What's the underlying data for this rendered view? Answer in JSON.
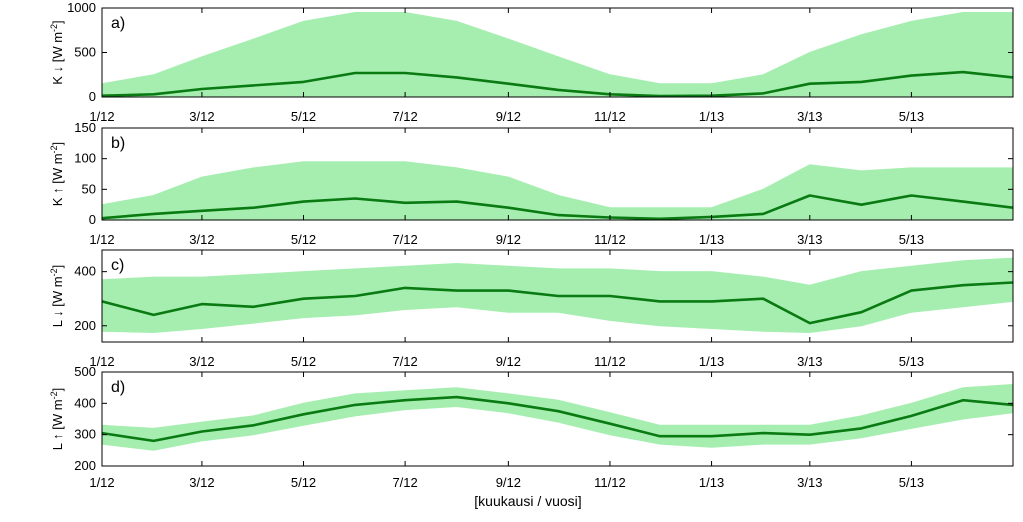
{
  "figure": {
    "xlabel": "[kuukausi / vuosi]",
    "x_ticks": [
      "1/12",
      "3/12",
      "5/12",
      "7/12",
      "9/12",
      "11/12",
      "1/13",
      "3/13",
      "5/13"
    ],
    "colors": {
      "scatter": "#a6eeb0",
      "mean": "#0a7a12",
      "frame": "#000000"
    }
  },
  "chart_data": [
    {
      "type": "scatter",
      "panel_label": "a)",
      "ylabel_parts": [
        "K",
        "↓",
        "[W m",
        "-2",
        "]"
      ],
      "ylim": [
        0,
        1000
      ],
      "yticks": [
        0,
        500,
        1000
      ],
      "xlim": [
        "2012-01-01",
        "2013-07-01"
      ],
      "series": [
        {
          "kind": "envelope",
          "x": [
            "2012-01",
            "2012-02",
            "2012-03",
            "2012-04",
            "2012-05",
            "2012-06",
            "2012-07",
            "2012-08",
            "2012-09",
            "2012-10",
            "2012-11",
            "2012-12",
            "2013-01",
            "2013-02",
            "2013-03",
            "2013-04",
            "2013-05",
            "2013-06",
            "2013-07"
          ],
          "low": [
            0,
            0,
            0,
            0,
            0,
            0,
            0,
            0,
            0,
            0,
            0,
            0,
            0,
            0,
            0,
            0,
            0,
            0,
            0
          ],
          "high": [
            150,
            250,
            450,
            650,
            850,
            950,
            950,
            850,
            650,
            450,
            250,
            150,
            150,
            250,
            500,
            700,
            850,
            950,
            950
          ]
        },
        {
          "kind": "mean",
          "x": [
            "2012-01",
            "2012-02",
            "2012-03",
            "2012-04",
            "2012-05",
            "2012-06",
            "2012-07",
            "2012-08",
            "2012-09",
            "2012-10",
            "2012-11",
            "2012-12",
            "2013-01",
            "2013-02",
            "2013-03",
            "2013-04",
            "2013-05",
            "2013-06",
            "2013-07"
          ],
          "y": [
            15,
            30,
            90,
            130,
            170,
            270,
            270,
            220,
            150,
            80,
            30,
            10,
            15,
            40,
            150,
            170,
            240,
            280,
            220
          ]
        }
      ]
    },
    {
      "type": "scatter",
      "panel_label": "b)",
      "ylabel_parts": [
        "K",
        "↑",
        "[W m",
        "-2",
        "]"
      ],
      "ylim": [
        0,
        150
      ],
      "yticks": [
        0,
        50,
        100,
        150
      ],
      "xlim": [
        "2012-01-01",
        "2013-07-01"
      ],
      "series": [
        {
          "kind": "envelope",
          "x": [
            "2012-01",
            "2012-02",
            "2012-03",
            "2012-04",
            "2012-05",
            "2012-06",
            "2012-07",
            "2012-08",
            "2012-09",
            "2012-10",
            "2012-11",
            "2012-12",
            "2013-01",
            "2013-02",
            "2013-03",
            "2013-04",
            "2013-05",
            "2013-06",
            "2013-07"
          ],
          "low": [
            0,
            0,
            0,
            0,
            0,
            0,
            0,
            0,
            0,
            0,
            0,
            0,
            0,
            0,
            0,
            0,
            0,
            0,
            0
          ],
          "high": [
            25,
            40,
            70,
            85,
            95,
            95,
            95,
            85,
            70,
            40,
            20,
            20,
            20,
            50,
            90,
            80,
            85,
            85,
            85
          ]
        },
        {
          "kind": "mean",
          "x": [
            "2012-01",
            "2012-02",
            "2012-03",
            "2012-04",
            "2012-05",
            "2012-06",
            "2012-07",
            "2012-08",
            "2012-09",
            "2012-10",
            "2012-11",
            "2012-12",
            "2013-01",
            "2013-02",
            "2013-03",
            "2013-04",
            "2013-05",
            "2013-06",
            "2013-07"
          ],
          "y": [
            3,
            10,
            15,
            20,
            30,
            35,
            28,
            30,
            20,
            8,
            4,
            2,
            5,
            10,
            40,
            25,
            40,
            30,
            20
          ]
        }
      ]
    },
    {
      "type": "scatter",
      "panel_label": "c)",
      "ylabel_parts": [
        "L",
        "↓",
        "[W m",
        "-2",
        "]"
      ],
      "ylim": [
        140,
        480
      ],
      "yticks": [
        200,
        400
      ],
      "xlim": [
        "2012-01-01",
        "2013-07-01"
      ],
      "series": [
        {
          "kind": "envelope",
          "x": [
            "2012-01",
            "2012-02",
            "2012-03",
            "2012-04",
            "2012-05",
            "2012-06",
            "2012-07",
            "2012-08",
            "2012-09",
            "2012-10",
            "2012-11",
            "2012-12",
            "2013-01",
            "2013-02",
            "2013-03",
            "2013-04",
            "2013-05",
            "2013-06",
            "2013-07"
          ],
          "low": [
            180,
            175,
            190,
            210,
            230,
            240,
            260,
            270,
            250,
            250,
            220,
            200,
            190,
            180,
            175,
            200,
            250,
            270,
            290
          ],
          "high": [
            370,
            380,
            380,
            390,
            400,
            410,
            420,
            430,
            420,
            410,
            410,
            400,
            400,
            380,
            350,
            400,
            420,
            440,
            450
          ]
        },
        {
          "kind": "mean",
          "x": [
            "2012-01",
            "2012-02",
            "2012-03",
            "2012-04",
            "2012-05",
            "2012-06",
            "2012-07",
            "2012-08",
            "2012-09",
            "2012-10",
            "2012-11",
            "2012-12",
            "2013-01",
            "2013-02",
            "2013-03",
            "2013-04",
            "2013-05",
            "2013-06",
            "2013-07"
          ],
          "y": [
            290,
            240,
            280,
            270,
            300,
            310,
            340,
            330,
            330,
            310,
            310,
            290,
            290,
            300,
            210,
            250,
            330,
            350,
            360
          ]
        }
      ]
    },
    {
      "type": "scatter",
      "panel_label": "d)",
      "ylabel_parts": [
        "L",
        "↑",
        "[W m",
        "-2",
        "]"
      ],
      "ylim": [
        200,
        500
      ],
      "yticks": [
        200,
        300,
        400,
        500
      ],
      "xlim": [
        "2012-01-01",
        "2013-07-01"
      ],
      "series": [
        {
          "kind": "envelope",
          "x": [
            "2012-01",
            "2012-02",
            "2012-03",
            "2012-04",
            "2012-05",
            "2012-06",
            "2012-07",
            "2012-08",
            "2012-09",
            "2012-10",
            "2012-11",
            "2012-12",
            "2013-01",
            "2013-02",
            "2013-03",
            "2013-04",
            "2013-05",
            "2013-06",
            "2013-07"
          ],
          "low": [
            270,
            250,
            280,
            300,
            330,
            360,
            380,
            390,
            370,
            340,
            300,
            270,
            260,
            270,
            270,
            290,
            320,
            350,
            370
          ],
          "high": [
            330,
            320,
            340,
            360,
            400,
            430,
            440,
            450,
            430,
            410,
            370,
            330,
            330,
            330,
            330,
            360,
            400,
            450,
            460
          ]
        },
        {
          "kind": "mean",
          "x": [
            "2012-01",
            "2012-02",
            "2012-03",
            "2012-04",
            "2012-05",
            "2012-06",
            "2012-07",
            "2012-08",
            "2012-09",
            "2012-10",
            "2012-11",
            "2012-12",
            "2013-01",
            "2013-02",
            "2013-03",
            "2013-04",
            "2013-05",
            "2013-06",
            "2013-07"
          ],
          "y": [
            305,
            280,
            310,
            330,
            365,
            395,
            410,
            420,
            400,
            375,
            335,
            295,
            295,
            305,
            300,
            320,
            360,
            410,
            395
          ]
        }
      ]
    }
  ]
}
